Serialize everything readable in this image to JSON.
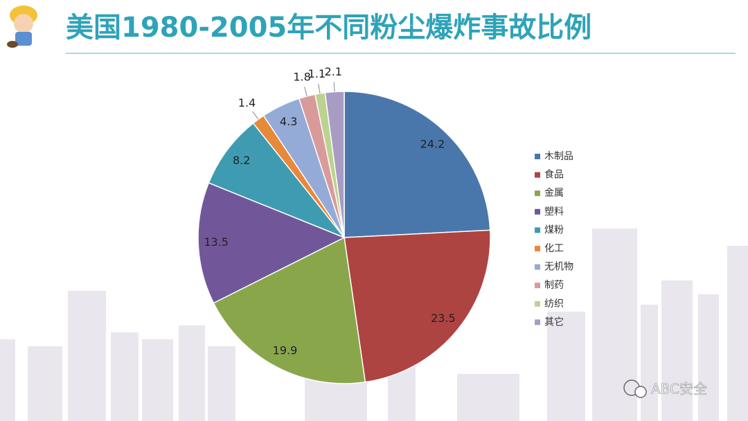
{
  "chart_data": {
    "type": "pie",
    "title": "美国1980-2005年不同粉尘爆炸事故比例",
    "categories": [
      "木制品",
      "食品",
      "金属",
      "塑料",
      "煤粉",
      "化工",
      "无机物",
      "制药",
      "纺织",
      "其它"
    ],
    "values": [
      24.2,
      23.5,
      19.9,
      13.5,
      8.2,
      1.4,
      4.3,
      1.8,
      1.1,
      2.1
    ],
    "colors": [
      "#4a77ab",
      "#ad4441",
      "#8aa64b",
      "#71579a",
      "#3f9bb1",
      "#e7893a",
      "#94abd7",
      "#d99b9a",
      "#bbd38f",
      "#a89cc4"
    ],
    "legend": "right",
    "watermark": "ABC安全"
  }
}
